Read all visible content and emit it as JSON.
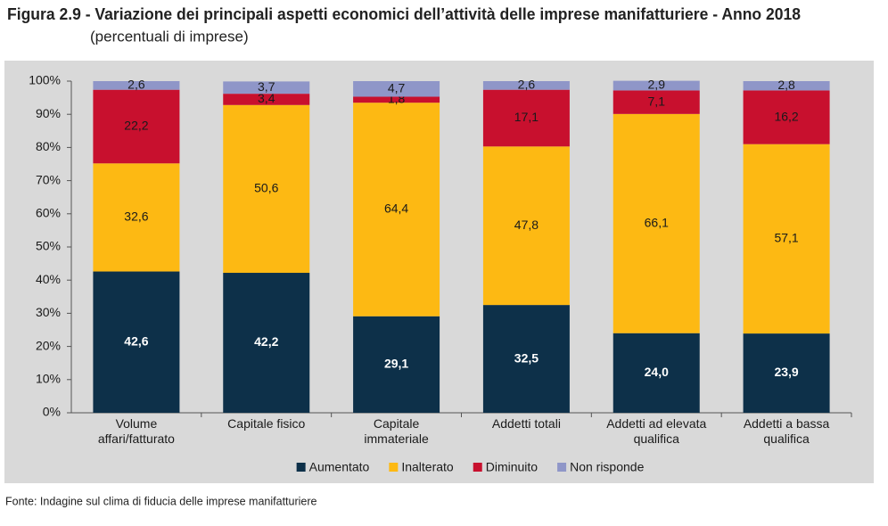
{
  "chart_data": {
    "type": "stacked_bar",
    "title": "Figura 2.9 - Variazione dei principali aspetti economici dell’attività delle imprese manifatturiere - Anno 2018",
    "subtitle": "(percentuali di imprese)",
    "source": "Fonte: Indagine sul clima di fiducia delle imprese manifatturiere",
    "categories": [
      "Volume affari/fatturato",
      "Capitale fisico",
      "Capitale immateriale",
      "Addetti totali",
      "Addetti ad elevata qualifica",
      "Addetti a bassa qualifica"
    ],
    "series": [
      {
        "name": "Aumentato",
        "color": "#0d3049",
        "values": [
          42.6,
          42.2,
          29.1,
          32.5,
          24.0,
          23.9
        ],
        "value_labels": [
          "42,6",
          "42,2",
          "29,1",
          "32,5",
          "24,0",
          "23,9"
        ]
      },
      {
        "name": "Inalterato",
        "color": "#fdb913",
        "values": [
          32.6,
          50.6,
          64.4,
          47.8,
          66.1,
          57.1
        ],
        "value_labels": [
          "32,6",
          "50,6",
          "64,4",
          "47,8",
          "66,1",
          "57,1"
        ]
      },
      {
        "name": "Diminuito",
        "color": "#c8102e",
        "values": [
          22.2,
          3.4,
          1.8,
          17.1,
          7.1,
          16.2
        ],
        "value_labels": [
          "22,2",
          "3,4",
          "1,8",
          "17,1",
          "7,1",
          "16,2"
        ]
      },
      {
        "name": "Non risponde",
        "color": "#8f96c8",
        "values": [
          2.6,
          3.7,
          4.7,
          2.6,
          2.9,
          2.8
        ],
        "value_labels": [
          "2,6",
          "3,7",
          "4,7",
          "2,6",
          "2,9",
          "2,8"
        ]
      }
    ],
    "ylim": [
      0,
      100
    ],
    "yticks": [
      {
        "value": 0,
        "label": "0%"
      },
      {
        "value": 10,
        "label": "10%"
      },
      {
        "value": 20,
        "label": "20%"
      },
      {
        "value": 30,
        "label": "30%"
      },
      {
        "value": 40,
        "label": "40%"
      },
      {
        "value": 50,
        "label": "50%"
      },
      {
        "value": 60,
        "label": "60%"
      },
      {
        "value": 70,
        "label": "70%"
      },
      {
        "value": 80,
        "label": "80%"
      },
      {
        "value": 90,
        "label": "90%"
      },
      {
        "value": 100,
        "label": "100%"
      }
    ],
    "legend": "bottom"
  }
}
